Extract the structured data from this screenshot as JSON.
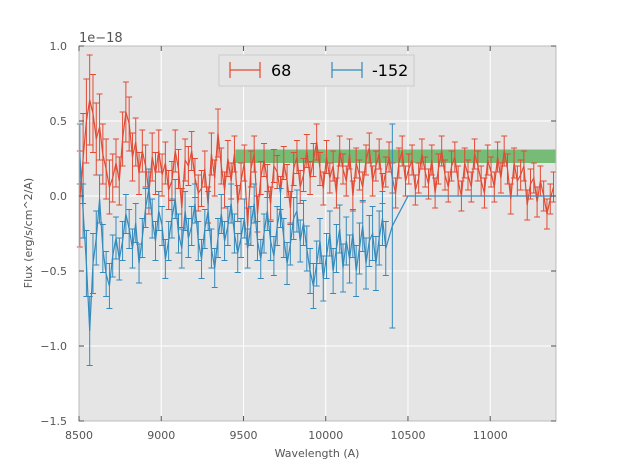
{
  "chart_data": {
    "type": "line",
    "style": "errorbar",
    "title": "",
    "xlabel": "Wavelength (A)",
    "ylabel": "Flux (erg/s/cm^2/A)",
    "offset_text": "1e−18",
    "xlim": [
      8500,
      11400
    ],
    "ylim": [
      -1.5,
      1.0
    ],
    "xticks": [
      8500,
      9000,
      9500,
      10000,
      10500,
      11000
    ],
    "xtick_labels": [
      "8500",
      "9000",
      "9500",
      "10000",
      "10500",
      "11000"
    ],
    "yticks": [
      -1.5,
      -1.0,
      -0.5,
      0.0,
      0.5,
      1.0
    ],
    "ytick_labels": [
      "−1.5",
      "−1.0",
      "−0.5",
      "0.0",
      "0.5",
      "1.0"
    ],
    "grid": true,
    "legend_position": "top-center",
    "band": {
      "x_range": [
        9450,
        11400
      ],
      "y_range": [
        0.22,
        0.31
      ],
      "color": "#2ca02c"
    },
    "series": [
      {
        "name": "68",
        "color": "#e24a33",
        "x": [
          8505,
          8525,
          8545,
          8565,
          8585,
          8605,
          8625,
          8645,
          8665,
          8685,
          8705,
          8725,
          8745,
          8765,
          8785,
          8805,
          8825,
          8845,
          8865,
          8885,
          8905,
          8925,
          8945,
          8965,
          8985,
          9005,
          9025,
          9045,
          9065,
          9085,
          9105,
          9125,
          9145,
          9165,
          9185,
          9205,
          9225,
          9245,
          9265,
          9285,
          9305,
          9325,
          9345,
          9365,
          9385,
          9405,
          9425,
          9445,
          9465,
          9485,
          9505,
          9525,
          9545,
          9565,
          9585,
          9605,
          9625,
          9645,
          9665,
          9685,
          9705,
          9725,
          9745,
          9765,
          9785,
          9805,
          9825,
          9845,
          9865,
          9885,
          9905,
          9925,
          9945,
          9965,
          9985,
          10005,
          10025,
          10045,
          10065,
          10085,
          10105,
          10125,
          10145,
          10165,
          10185,
          10205,
          10225,
          10245,
          10265,
          10285,
          10305,
          10325,
          10345,
          10365,
          10385,
          10405,
          10425,
          10445,
          10465,
          10485,
          10505,
          10525,
          10545,
          10565,
          10585,
          10605,
          10625,
          10645,
          10665,
          10685,
          10705,
          10725,
          10745,
          10765,
          10785,
          10805,
          10825,
          10845,
          10865,
          10885,
          10905,
          10925,
          10945,
          10965,
          10985,
          11005,
          11025,
          11045,
          11065,
          11085,
          11105,
          11125,
          11145,
          11165,
          11185,
          11205,
          11225,
          11245,
          11265,
          11285,
          11305,
          11325,
          11345,
          11365,
          11385
        ],
        "values": [
          -0.02,
          0.25,
          0.5,
          0.64,
          0.55,
          0.38,
          0.46,
          0.28,
          0.18,
          0.06,
          0.12,
          0.22,
          0.1,
          0.38,
          0.56,
          0.48,
          0.26,
          0.36,
          0.15,
          0.3,
          0.2,
          0.02,
          0.26,
          0.15,
          0.3,
          0.14,
          0.22,
          0.04,
          0.1,
          0.3,
          0.18,
          -0.08,
          0.24,
          0.2,
          0.3,
          0.12,
          0.02,
          0.05,
          0.18,
          -0.06,
          0.28,
          0.12,
          0.42,
          0.2,
          0.04,
          0.25,
          0.1,
          0.28,
          -0.05,
          0.1,
          0.22,
          -0.2,
          0.18,
          0.28,
          -0.12,
          0.12,
          0.24,
          0.1,
          -0.05,
          0.2,
          0.16,
          0.02,
          0.22,
          0.1,
          -0.08,
          0.18,
          0.26,
          0.06,
          0.14,
          0.3,
          0.12,
          0.24,
          0.36,
          0.18,
          0.05,
          0.26,
          0.12,
          0.2,
          0.02,
          0.3,
          0.18,
          0.1,
          0.28,
          0.0,
          0.22,
          0.14,
          0.06,
          0.24,
          0.32,
          0.1,
          0.2,
          0.28,
          0.05,
          0.16,
          0.26,
          0.12,
          0.02,
          0.22,
          0.3,
          0.1,
          0.18,
          0.24,
          0.04,
          0.12,
          0.28,
          0.16,
          0.08,
          0.24,
          0.02,
          0.18,
          0.3,
          0.14,
          0.06,
          0.2,
          0.26,
          0.1,
          0.0,
          0.22,
          0.14,
          0.06,
          0.28,
          0.2,
          0.1,
          0.02,
          0.24,
          0.16,
          0.06,
          0.26,
          0.12,
          0.3,
          0.18,
          -0.02,
          0.22,
          0.1,
          0.14,
          0.2,
          -0.06,
          0.08,
          0.12,
          -0.04,
          0.1,
          0.0,
          -0.12,
          -0.02,
          0.06
        ],
        "errors": [
          0.32,
          0.3,
          0.28,
          0.3,
          0.26,
          0.24,
          0.22,
          0.2,
          0.2,
          0.18,
          0.16,
          0.16,
          0.16,
          0.18,
          0.2,
          0.18,
          0.16,
          0.16,
          0.14,
          0.14,
          0.14,
          0.14,
          0.16,
          0.14,
          0.14,
          0.14,
          0.14,
          0.13,
          0.13,
          0.14,
          0.13,
          0.13,
          0.14,
          0.13,
          0.13,
          0.13,
          0.12,
          0.12,
          0.12,
          0.12,
          0.14,
          0.12,
          0.16,
          0.12,
          0.12,
          0.12,
          0.12,
          0.12,
          0.12,
          0.12,
          0.12,
          0.12,
          0.12,
          0.12,
          0.12,
          0.11,
          0.11,
          0.11,
          0.11,
          0.11,
          0.11,
          0.11,
          0.11,
          0.11,
          0.11,
          0.11,
          0.11,
          0.11,
          0.11,
          0.11,
          0.11,
          0.11,
          0.12,
          0.11,
          0.11,
          0.11,
          0.1,
          0.1,
          0.1,
          0.1,
          0.1,
          0.1,
          0.1,
          0.1,
          0.1,
          0.1,
          0.1,
          0.1,
          0.1,
          0.1,
          0.1,
          0.1,
          0.1,
          0.1,
          0.1,
          0.1,
          0.1,
          0.1,
          0.1,
          0.1,
          0.1,
          0.1,
          0.1,
          0.1,
          0.1,
          0.1,
          0.1,
          0.1,
          0.1,
          0.1,
          0.1,
          0.1,
          0.1,
          0.1,
          0.1,
          0.1,
          0.1,
          0.1,
          0.1,
          0.1,
          0.1,
          0.1,
          0.1,
          0.1,
          0.1,
          0.1,
          0.1,
          0.1,
          0.1,
          0.1,
          0.1,
          0.1,
          0.1,
          0.1,
          0.1,
          0.1,
          0.1,
          0.1,
          0.1,
          0.1,
          0.1,
          0.1,
          0.1,
          0.1,
          0.1
        ]
      },
      {
        "name": "-152",
        "color": "#348abd",
        "x": [
          8505,
          8525,
          8545,
          8565,
          8585,
          8605,
          8625,
          8645,
          8665,
          8685,
          8705,
          8725,
          8745,
          8765,
          8785,
          8805,
          8825,
          8845,
          8865,
          8885,
          8905,
          8925,
          8945,
          8965,
          8985,
          9005,
          9025,
          9045,
          9065,
          9085,
          9105,
          9125,
          9145,
          9165,
          9185,
          9205,
          9225,
          9245,
          9265,
          9285,
          9305,
          9325,
          9345,
          9365,
          9385,
          9405,
          9425,
          9445,
          9465,
          9485,
          9505,
          9525,
          9545,
          9565,
          9585,
          9605,
          9625,
          9645,
          9665,
          9685,
          9705,
          9725,
          9745,
          9765,
          9785,
          9805,
          9825,
          9845,
          9865,
          9885,
          9905,
          9925,
          9945,
          9965,
          9985,
          10005,
          10025,
          10045,
          10065,
          10085,
          10105,
          10125,
          10145,
          10165,
          10185,
          10205,
          10225,
          10245,
          10265,
          10285,
          10305,
          10325,
          10345,
          10365,
          10405,
          10500,
          10600,
          10700,
          10800,
          10900,
          11000,
          11100,
          11200,
          11300,
          11400
        ],
        "values": [
          0.28,
          -0.1,
          -0.45,
          -0.9,
          -0.45,
          -0.28,
          -0.02,
          -0.35,
          -0.52,
          -0.6,
          -0.4,
          -0.28,
          -0.42,
          -0.3,
          -0.12,
          -0.22,
          -0.35,
          -0.18,
          -0.45,
          -0.28,
          -0.08,
          0.05,
          -0.15,
          -0.3,
          -0.1,
          -0.2,
          -0.42,
          -0.3,
          -0.15,
          -0.02,
          -0.25,
          -0.35,
          -0.1,
          -0.28,
          -0.2,
          -0.05,
          -0.3,
          -0.42,
          -0.22,
          -0.1,
          -0.35,
          -0.48,
          -0.28,
          -0.12,
          -0.3,
          -0.2,
          -0.05,
          -0.25,
          -0.38,
          -0.28,
          -0.15,
          -0.35,
          -0.2,
          -0.05,
          -0.3,
          -0.42,
          -0.25,
          -0.1,
          -0.3,
          -0.4,
          -0.2,
          -0.08,
          -0.28,
          -0.45,
          -0.32,
          -0.15,
          -0.1,
          -0.3,
          -0.18,
          -0.35,
          -0.5,
          -0.6,
          -0.45,
          -0.3,
          -0.55,
          -0.4,
          -0.25,
          -0.5,
          -0.35,
          -0.22,
          -0.48,
          -0.3,
          -0.42,
          -0.25,
          -0.5,
          -0.35,
          -0.2,
          -0.45,
          -0.3,
          -0.25,
          -0.45,
          -0.28,
          -0.15,
          -0.35,
          -0.2,
          0.0,
          0.0,
          0.0,
          0.0,
          0.0,
          0.0,
          0.0,
          0.0,
          0.0,
          0.0
        ],
        "errors": [
          0.2,
          0.18,
          0.22,
          0.23,
          0.2,
          0.18,
          0.16,
          0.16,
          0.15,
          0.15,
          0.14,
          0.14,
          0.14,
          0.13,
          0.13,
          0.13,
          0.13,
          0.13,
          0.13,
          0.13,
          0.13,
          0.13,
          0.13,
          0.13,
          0.13,
          0.13,
          0.13,
          0.13,
          0.13,
          0.13,
          0.13,
          0.13,
          0.13,
          0.13,
          0.13,
          0.13,
          0.13,
          0.13,
          0.13,
          0.13,
          0.13,
          0.13,
          0.13,
          0.13,
          0.13,
          0.13,
          0.13,
          0.13,
          0.13,
          0.13,
          0.13,
          0.13,
          0.13,
          0.13,
          0.13,
          0.13,
          0.13,
          0.13,
          0.13,
          0.13,
          0.13,
          0.13,
          0.13,
          0.14,
          0.14,
          0.14,
          0.14,
          0.14,
          0.15,
          0.15,
          0.15,
          0.15,
          0.15,
          0.15,
          0.15,
          0.15,
          0.15,
          0.15,
          0.16,
          0.16,
          0.16,
          0.16,
          0.16,
          0.16,
          0.17,
          0.17,
          0.17,
          0.17,
          0.17,
          0.18,
          0.18,
          0.18,
          0.18,
          0.18,
          0.68,
          0,
          0,
          0,
          0,
          0,
          0,
          0,
          0,
          0,
          0
        ]
      }
    ]
  }
}
